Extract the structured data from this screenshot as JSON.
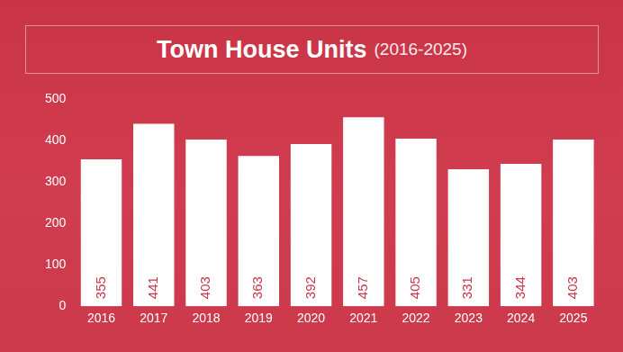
{
  "chart_data": {
    "type": "bar",
    "title": "Town House Units",
    "subtitle": "(2016-2025)",
    "categories": [
      "2016",
      "2017",
      "2018",
      "2019",
      "2020",
      "2021",
      "2022",
      "2023",
      "2024",
      "2025"
    ],
    "values": [
      355,
      441,
      403,
      363,
      392,
      457,
      405,
      331,
      344,
      403
    ],
    "color": "#ffffff",
    "ylim": [
      0,
      500
    ],
    "yticks": [
      0,
      100,
      200,
      300,
      400,
      500
    ],
    "grid": false,
    "data_labels": true
  }
}
